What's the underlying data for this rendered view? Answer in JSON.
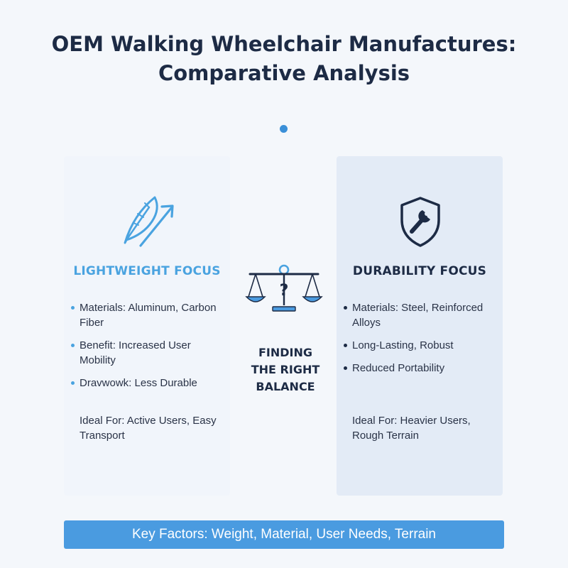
{
  "title_line1": "OEM Walking Wheelchair Manufactures:",
  "title_line2": "Comparative Analysis",
  "left_panel": {
    "icon": "feather-arrow-icon",
    "title": "LIGHTWEIGHT FOCUS",
    "bullets": [
      "Materials: Aluminum, Carbon Fiber",
      "Benefit: Increased User Mobility",
      "Dravwowk: Less Durable"
    ],
    "ideal_for": "Ideal For: Active Users, Easy Transport"
  },
  "center": {
    "icon": "balance-scale-question-icon",
    "text_line1": "FINDING",
    "text_line2": "THE RIGHT",
    "text_line3": "BALANCE"
  },
  "right_panel": {
    "icon": "shield-wrench-icon",
    "title": "DURABILITY FOCUS",
    "bullets": [
      "Materials: Steel, Reinforced Alloys",
      "Long-Lasting, Robust",
      "Reduced Portability"
    ],
    "ideal_for": "Ideal For: Heavier Users, Rough Terrain"
  },
  "footer": "Key Factors: Weight, Material, User Needs, Terrain",
  "colors": {
    "accent": "#4a9be0",
    "dark": "#1d2b45",
    "left_panel_bg": "#f1f5fb",
    "right_panel_bg": "#e3ebf6"
  }
}
